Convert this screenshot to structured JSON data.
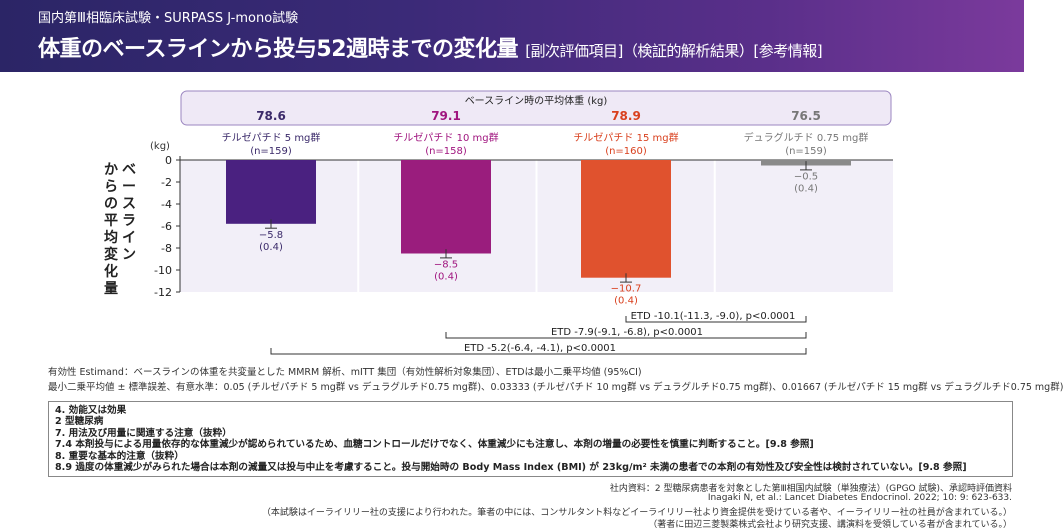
{
  "header": {
    "subtitle": "国内第Ⅲ相臨床試験・SURPASS J-mono試験",
    "title": "体重のベースラインから投与52週時までの変化量",
    "tags": "[副次評価項目]（検証的解析結果）[参考情報]"
  },
  "chart_data": {
    "type": "bar",
    "baseline_title": "ベースライン時の平均体重 (kg)",
    "unit_label": "(kg)",
    "ylabel": "ベースラインからの平均変化量",
    "ylim": [
      -12,
      0
    ],
    "yticks": [
      "0",
      "-2",
      "-4",
      "-6",
      "-8",
      "-10",
      "-12"
    ],
    "series": [
      {
        "name": "チルゼパチド 5 mg群",
        "n": "(n=159)",
        "baseline": "78.6",
        "value": -5.8,
        "label": "−5.8",
        "se": "(0.4)",
        "color": "#4a2180",
        "text_color": "#3b2a6a"
      },
      {
        "name": "チルゼパチド 10 mg群",
        "n": "(n=158)",
        "baseline": "79.1",
        "value": -8.5,
        "label": "−8.5",
        "se": "(0.4)",
        "color": "#9a1d7d",
        "text_color": "#a0157f"
      },
      {
        "name": "チルゼパチド 15 mg群",
        "n": "(n=160)",
        "baseline": "78.9",
        "value": -10.7,
        "label": "−10.7",
        "se": "(0.4)",
        "color": "#e0522e",
        "text_color": "#d9401e"
      },
      {
        "name": "デュラグルチド 0.75 mg群",
        "n": "(n=159)",
        "baseline": "76.5",
        "value": -0.5,
        "label": "−0.5",
        "se": "(0.4)",
        "color": "#8a8a8a",
        "text_color": "#777777"
      }
    ],
    "etd": [
      "ETD -10.1(-11.3, -9.0), p<0.0001",
      "ETD -7.9(-9.1, -6.8), p<0.0001",
      "ETD -5.2(-6.4, -4.1), p<0.0001"
    ]
  },
  "notes": {
    "line1": "有効性 Estimand：ベースラインの体重を共変量とした MMRM 解析、mITT 集団（有効性解析対象集団）、ETDは最小二乗平均値 (95%CI)",
    "line2": "最小二乗平均値 ± 標準誤差、有意水準：0.05 (チルゼパチド 5 mg群 vs デュラグルチド0.75 mg群)、0.03333 (チルゼパチド 10 mg群 vs デュラグルチド0.75 mg群)、0.01667 (チルゼパチド 15 mg群 vs デュラグルチド0.75 mg群)"
  },
  "box": {
    "l1": "4. 効能又は効果",
    "l2": "2 型糖尿病",
    "l3": "7. 用法及び用量に関連する注意（抜粋）",
    "l4": "7.4 本剤投与による用量依存的な体重減少が認められているため、血糖コントロールだけでなく、体重減少にも注意し、本剤の増量の必要性を慎重に判断すること。[9.8 参照]",
    "l5": "8. 重要な基本的注意（抜粋）",
    "l6": "8.9 過度の体重減少がみられた場合は本剤の減量又は投与中止を考慮すること。投与開始時の Body Mass Index (BMI) が 23kg/m² 未満の患者での本剤の有効性及び安全性は検討されていない。[9.8 参照]"
  },
  "footer": {
    "f1": "社内資料：2 型糖尿病患者を対象とした第Ⅲ相国内試験（単独療法）(GPGO 試験)、承認時評価資料",
    "f2": "Inagaki N, et al.: Lancet Diabetes Endocrinol. 2022; 10: 9: 623-633.",
    "f3": "（本試験はイーライリリー社の支援により行われた。筆者の中には、コンサルタント料などイーライリリー社より資金提供を受けている者や、イーライリリー社の社員が含まれている。）",
    "f4": "（著者に田辺三菱製薬株式会社より研究支援、講演料を受領している者が含まれている。）"
  }
}
